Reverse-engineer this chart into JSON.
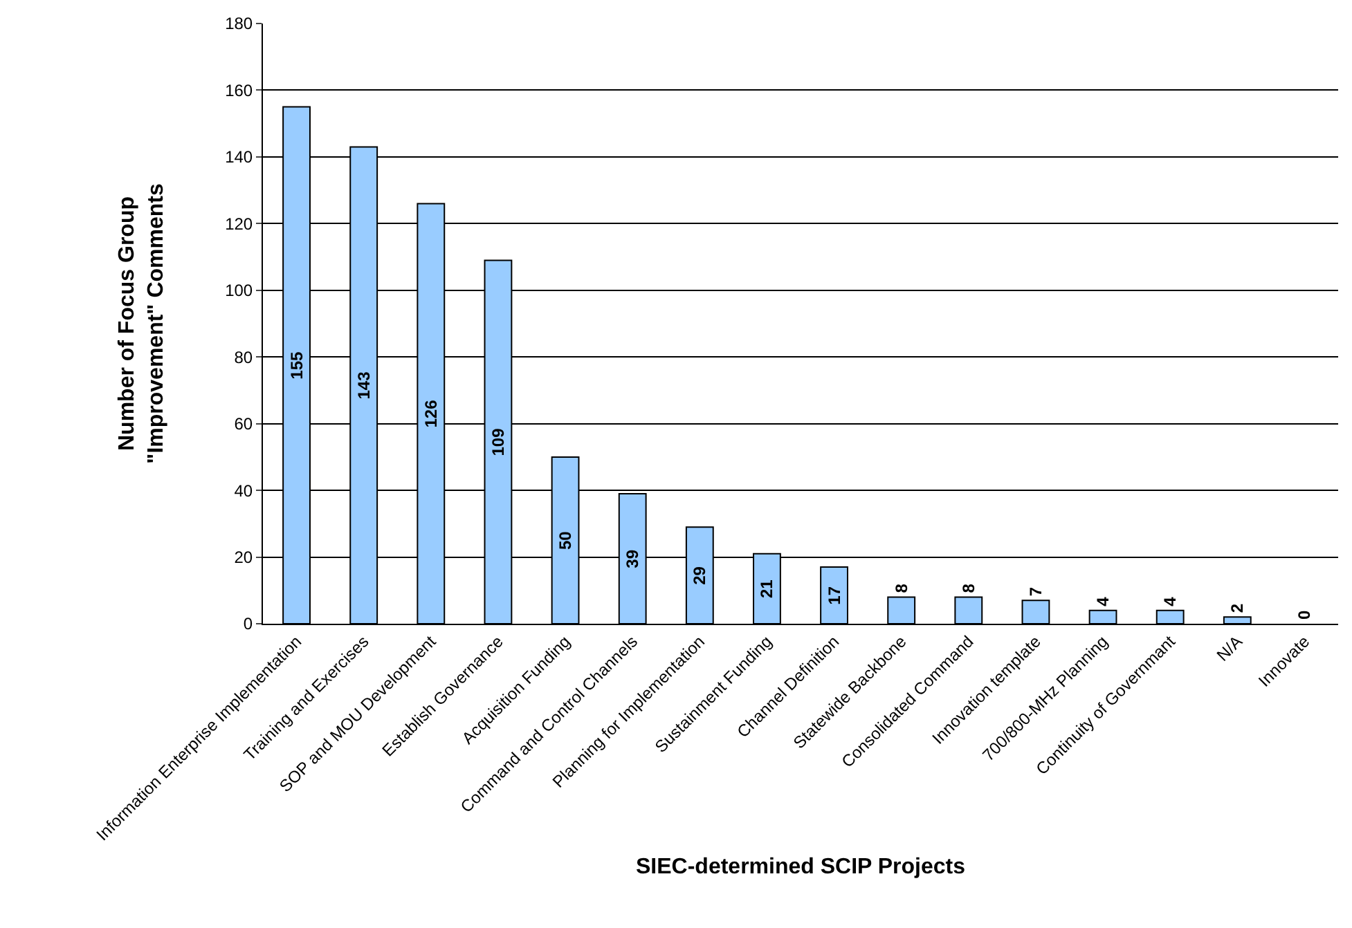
{
  "chart_data": {
    "type": "bar",
    "xlabel": "SIEC-determined SCIP Projects",
    "ylabel": "Number of Focus Group\n\"Improvement\" Comments",
    "categories": [
      "Information Enterprise Implementation",
      "Training and Exercises",
      "SOP and MOU Development",
      "Establish Governance",
      "Acquisition Funding",
      "Command and Control Channels",
      "Planning for Implementation",
      "Sustainment Funding",
      "Channel Definition",
      "Statewide Backbone",
      "Consolidated Command",
      "Innovation template",
      "700/800-MHz Planning",
      "Continuity of Governmant",
      "N/A",
      "Innovate"
    ],
    "values": [
      155,
      143,
      126,
      109,
      50,
      39,
      29,
      21,
      17,
      8,
      8,
      7,
      4,
      4,
      2,
      0
    ],
    "color": "#99ccff",
    "ylim": [
      0,
      180
    ],
    "yticks": [
      0,
      20,
      40,
      60,
      80,
      100,
      120,
      140,
      160,
      180
    ],
    "grid": "y",
    "data_labels": true,
    "legend": false
  }
}
